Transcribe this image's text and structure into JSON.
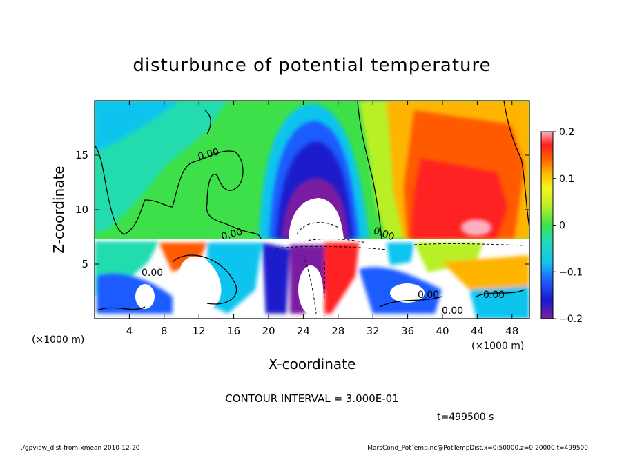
{
  "chart_data": {
    "type": "heatmap",
    "title": "disturbunce of potential temperature",
    "xlabel": "X-coordinate",
    "ylabel": "Z-coordinate",
    "x_unit_label": "(×1000 m)",
    "y_unit_label": "(×1000 m)",
    "xlim": [
      0,
      50
    ],
    "ylim": [
      0,
      20
    ],
    "x_ticks": [
      4,
      8,
      12,
      16,
      20,
      24,
      28,
      32,
      36,
      40,
      44,
      48
    ],
    "y_ticks": [
      5,
      10,
      15
    ],
    "colorbar": {
      "range": [
        -0.2,
        0.2
      ],
      "tick_values": [
        -0.2,
        -0.1,
        0,
        0.1,
        0.2
      ],
      "tick_labels": [
        "−0.2",
        "−0.1",
        "0",
        "0.1",
        "0.2"
      ]
    },
    "contour_labels": [
      "0.00",
      "0.00",
      "0.00",
      "0.00",
      "0.00",
      "0.00",
      "0.00"
    ],
    "contour_interval_text": "CONTOUR INTERVAL = 3.000E-01",
    "time_text": "t=499500 s",
    "footer_left": "./gpview_dist-from-xmean  2010-12-20",
    "footer_right": "MarsCond_PotTemp.nc@PotTempDist,x=0:50000,z=0:20000,t=499500",
    "field_features": [
      {
        "x": 25,
        "z": 10.5,
        "value": -0.25,
        "sx": 4.5,
        "sz": 5
      },
      {
        "x": 26,
        "z": 9.5,
        "value": -0.15,
        "sx": 6,
        "sz": 6.5
      },
      {
        "x": 41,
        "z": 12,
        "value": 0.15,
        "sx": 5.5,
        "sz": 5
      },
      {
        "x": 38,
        "z": 15,
        "value": 0.08,
        "sx": 6,
        "sz": 4
      },
      {
        "x": 8,
        "z": 14,
        "value": -0.04,
        "sx": 6,
        "sz": 5
      }
    ]
  }
}
